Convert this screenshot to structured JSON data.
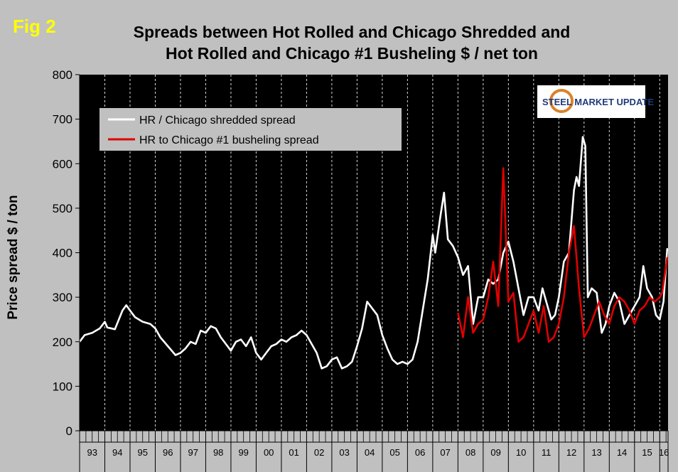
{
  "fig_label": "Fig 2",
  "title_line1": "Spreads between Hot Rolled and Chicago Shredded and",
  "title_line2": "Hot Rolled and Chicago #1 Busheling  $ / net ton",
  "logo": {
    "text_steel": "STEEL",
    "text_rest": " MARKET UPDATE",
    "accent_color": "#1f3a7a",
    "ring_color": "#d9822b"
  },
  "colors": {
    "plot_bg": "#000000",
    "grid": "#ffffff",
    "shredded": "#ffffff",
    "busheling": "#e00000",
    "page_bg": "#c0c0c0"
  },
  "chart_data": {
    "type": "line",
    "ylabel": "Price spread $ / ton",
    "ylim": [
      0,
      800
    ],
    "yticks": [
      0,
      100,
      200,
      300,
      400,
      500,
      600,
      700,
      800
    ],
    "x_start": 1993.0,
    "x_end": 2016.33,
    "categories": [
      "93",
      "94",
      "95",
      "96",
      "97",
      "98",
      "99",
      "00",
      "01",
      "02",
      "03",
      "04",
      "05",
      "06",
      "07",
      "08",
      "09",
      "10",
      "11",
      "12",
      "13",
      "14",
      "15",
      "16"
    ],
    "grid": "vertical dashed lines at each year boundary",
    "legend_position": "top-left",
    "series": [
      {
        "name": "HR / Chicago shredded spread",
        "color": "#ffffff",
        "points": [
          [
            1993.0,
            200
          ],
          [
            1993.2,
            215
          ],
          [
            1993.5,
            220
          ],
          [
            1993.8,
            230
          ],
          [
            1994.0,
            245
          ],
          [
            1994.1,
            232
          ],
          [
            1994.4,
            228
          ],
          [
            1994.7,
            270
          ],
          [
            1994.85,
            282
          ],
          [
            1995.0,
            270
          ],
          [
            1995.2,
            255
          ],
          [
            1995.5,
            245
          ],
          [
            1995.8,
            240
          ],
          [
            1996.0,
            230
          ],
          [
            1996.2,
            210
          ],
          [
            1996.5,
            190
          ],
          [
            1996.8,
            170
          ],
          [
            1997.0,
            175
          ],
          [
            1997.2,
            185
          ],
          [
            1997.4,
            200
          ],
          [
            1997.6,
            195
          ],
          [
            1997.8,
            225
          ],
          [
            1998.0,
            220
          ],
          [
            1998.2,
            235
          ],
          [
            1998.4,
            230
          ],
          [
            1998.6,
            210
          ],
          [
            1998.8,
            195
          ],
          [
            1999.0,
            180
          ],
          [
            1999.2,
            200
          ],
          [
            1999.4,
            205
          ],
          [
            1999.6,
            190
          ],
          [
            1999.8,
            210
          ],
          [
            2000.0,
            175
          ],
          [
            2000.2,
            160
          ],
          [
            2000.4,
            175
          ],
          [
            2000.6,
            190
          ],
          [
            2000.8,
            195
          ],
          [
            2001.0,
            205
          ],
          [
            2001.2,
            200
          ],
          [
            2001.4,
            210
          ],
          [
            2001.6,
            215
          ],
          [
            2001.8,
            225
          ],
          [
            2002.0,
            215
          ],
          [
            2002.2,
            195
          ],
          [
            2002.4,
            175
          ],
          [
            2002.6,
            140
          ],
          [
            2002.8,
            145
          ],
          [
            2003.0,
            160
          ],
          [
            2003.2,
            165
          ],
          [
            2003.4,
            140
          ],
          [
            2003.6,
            145
          ],
          [
            2003.8,
            155
          ],
          [
            2004.0,
            190
          ],
          [
            2004.2,
            230
          ],
          [
            2004.4,
            290
          ],
          [
            2004.6,
            275
          ],
          [
            2004.8,
            260
          ],
          [
            2005.0,
            215
          ],
          [
            2005.2,
            185
          ],
          [
            2005.4,
            160
          ],
          [
            2005.6,
            150
          ],
          [
            2005.8,
            155
          ],
          [
            2006.0,
            150
          ],
          [
            2006.2,
            160
          ],
          [
            2006.4,
            200
          ],
          [
            2006.6,
            270
          ],
          [
            2006.8,
            340
          ],
          [
            2007.0,
            440
          ],
          [
            2007.1,
            400
          ],
          [
            2007.3,
            480
          ],
          [
            2007.45,
            535
          ],
          [
            2007.6,
            430
          ],
          [
            2007.8,
            415
          ],
          [
            2008.0,
            390
          ],
          [
            2008.2,
            350
          ],
          [
            2008.4,
            370
          ],
          [
            2008.6,
            240
          ],
          [
            2008.8,
            300
          ],
          [
            2009.0,
            300
          ],
          [
            2009.2,
            340
          ],
          [
            2009.4,
            330
          ],
          [
            2009.6,
            340
          ],
          [
            2009.8,
            400
          ],
          [
            2010.0,
            425
          ],
          [
            2010.2,
            380
          ],
          [
            2010.4,
            320
          ],
          [
            2010.6,
            260
          ],
          [
            2010.8,
            300
          ],
          [
            2011.0,
            300
          ],
          [
            2011.2,
            270
          ],
          [
            2011.35,
            320
          ],
          [
            2011.5,
            290
          ],
          [
            2011.7,
            250
          ],
          [
            2011.85,
            260
          ],
          [
            2012.0,
            300
          ],
          [
            2012.2,
            380
          ],
          [
            2012.4,
            400
          ],
          [
            2012.6,
            540
          ],
          [
            2012.7,
            570
          ],
          [
            2012.8,
            550
          ],
          [
            2012.95,
            660
          ],
          [
            2013.05,
            640
          ],
          [
            2013.15,
            300
          ],
          [
            2013.3,
            320
          ],
          [
            2013.5,
            310
          ],
          [
            2013.7,
            220
          ],
          [
            2013.85,
            240
          ],
          [
            2014.0,
            280
          ],
          [
            2014.2,
            310
          ],
          [
            2014.4,
            290
          ],
          [
            2014.6,
            240
          ],
          [
            2014.8,
            260
          ],
          [
            2015.0,
            280
          ],
          [
            2015.2,
            300
          ],
          [
            2015.35,
            370
          ],
          [
            2015.5,
            320
          ],
          [
            2015.7,
            300
          ],
          [
            2015.85,
            260
          ],
          [
            2016.0,
            250
          ],
          [
            2016.15,
            290
          ],
          [
            2016.3,
            410
          ]
        ]
      },
      {
        "name": "HR to Chicago #1 busheling spread",
        "color": "#e00000",
        "points": [
          [
            2008.0,
            265
          ],
          [
            2008.2,
            210
          ],
          [
            2008.4,
            300
          ],
          [
            2008.6,
            220
          ],
          [
            2008.8,
            240
          ],
          [
            2009.0,
            250
          ],
          [
            2009.2,
            300
          ],
          [
            2009.4,
            380
          ],
          [
            2009.6,
            280
          ],
          [
            2009.8,
            590
          ],
          [
            2010.0,
            290
          ],
          [
            2010.2,
            310
          ],
          [
            2010.4,
            200
          ],
          [
            2010.6,
            210
          ],
          [
            2010.8,
            240
          ],
          [
            2011.0,
            270
          ],
          [
            2011.2,
            220
          ],
          [
            2011.4,
            280
          ],
          [
            2011.6,
            200
          ],
          [
            2011.8,
            210
          ],
          [
            2012.0,
            240
          ],
          [
            2012.2,
            300
          ],
          [
            2012.4,
            400
          ],
          [
            2012.6,
            460
          ],
          [
            2012.8,
            320
          ],
          [
            2013.0,
            210
          ],
          [
            2013.2,
            230
          ],
          [
            2013.4,
            260
          ],
          [
            2013.6,
            290
          ],
          [
            2013.8,
            260
          ],
          [
            2014.0,
            240
          ],
          [
            2014.2,
            280
          ],
          [
            2014.4,
            300
          ],
          [
            2014.6,
            290
          ],
          [
            2014.8,
            270
          ],
          [
            2015.0,
            240
          ],
          [
            2015.2,
            270
          ],
          [
            2015.4,
            280
          ],
          [
            2015.6,
            300
          ],
          [
            2015.8,
            290
          ],
          [
            2016.0,
            300
          ],
          [
            2016.1,
            310
          ],
          [
            2016.3,
            390
          ]
        ]
      }
    ]
  }
}
